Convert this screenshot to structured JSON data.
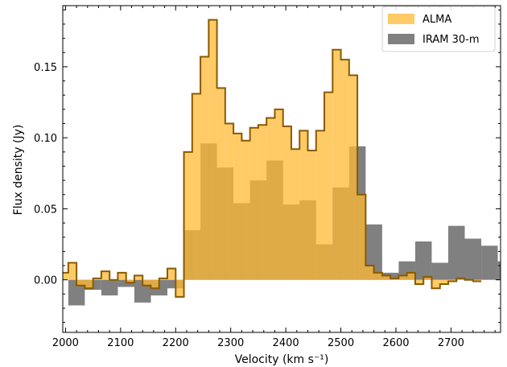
{
  "chart_data": {
    "type": "histogram-step",
    "xlabel": "Velocity (km s⁻¹)",
    "ylabel": "Flux density (Jy)",
    "xlim": [
      1995,
      2790
    ],
    "ylim": [
      -0.037,
      0.193
    ],
    "xticks": [
      2000,
      2100,
      2200,
      2300,
      2400,
      2500,
      2600,
      2700
    ],
    "xtick_labels": [
      "2000",
      "2100",
      "2200",
      "2300",
      "2400",
      "2500",
      "2600",
      "2700"
    ],
    "yticks": [
      0.0,
      0.05,
      0.1,
      0.15
    ],
    "ytick_labels": [
      "0.00",
      "0.05",
      "0.10",
      "0.15"
    ],
    "legend_position": "top-right",
    "series": [
      {
        "name": "IRAM 30-m",
        "color": "#808080",
        "bin_width": 30,
        "edges_start": 2005,
        "values": [
          -0.018,
          -0.007,
          -0.011,
          -0.005,
          -0.016,
          -0.011,
          -0.006,
          0.035,
          0.096,
          0.079,
          0.054,
          0.07,
          0.084,
          0.053,
          0.056,
          0.025,
          0.065,
          0.094,
          0.039,
          0.005,
          0.013,
          0.027,
          0.012,
          0.038,
          0.029,
          0.024,
          0.013
        ]
      },
      {
        "name": "ALMA",
        "color": "#ffb933",
        "edge_color": "#8a5a00",
        "bin_width": 15,
        "edges_start": 1990,
        "values": [
          0.005,
          0.012,
          -0.004,
          -0.006,
          0.001,
          0.006,
          0.0,
          0.005,
          -0.002,
          0.003,
          -0.004,
          -0.006,
          0.001,
          0.008,
          -0.012,
          0.09,
          0.131,
          0.157,
          0.183,
          0.135,
          0.11,
          0.103,
          0.098,
          0.107,
          0.109,
          0.114,
          0.12,
          0.108,
          0.092,
          0.105,
          0.091,
          0.105,
          0.132,
          0.162,
          0.155,
          0.144,
          0.06,
          0.01,
          0.005,
          0.003,
          0.001,
          0.003,
          0.005,
          -0.003,
          0.002,
          -0.006,
          -0.003,
          -0.001,
          0.001,
          0.0,
          -0.001
        ]
      }
    ]
  }
}
